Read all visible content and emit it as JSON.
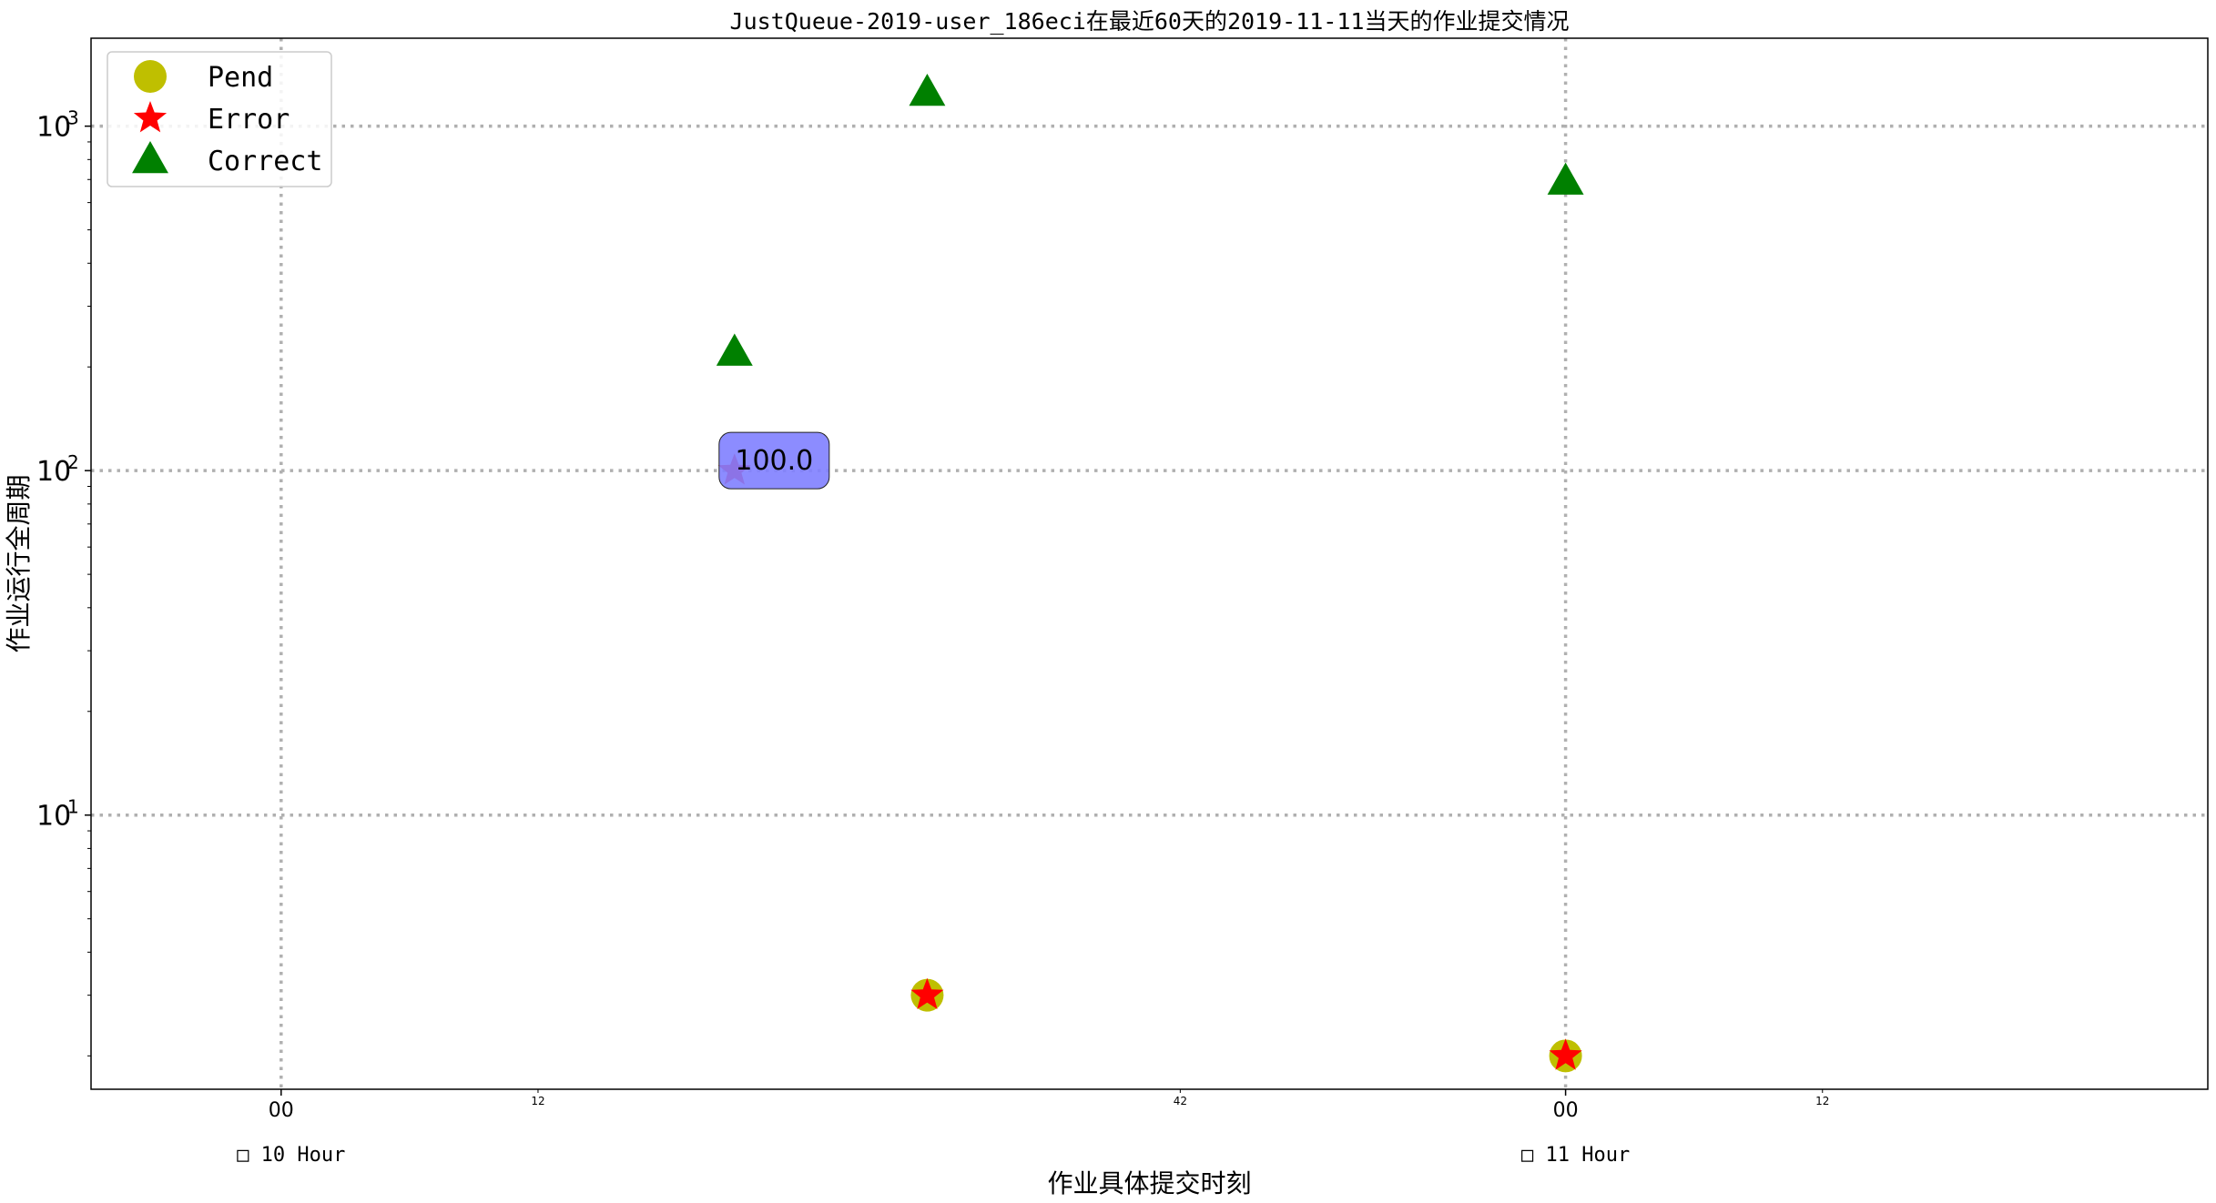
{
  "chart_data": {
    "type": "scatter",
    "title": "JustQueue-2019-user_186eci在最近60天的2019-11-11当天的作业提交情况",
    "xlabel": "作业具体提交时刻",
    "ylabel": "作业运行全周期",
    "yscale": "log",
    "ylim": [
      1.6,
      1800
    ],
    "xlim": [
      -0.148,
      1.5
    ],
    "grid": true,
    "legend_position": "top-left",
    "yticks": [
      {
        "value": 10,
        "base": "10",
        "exp": "1"
      },
      {
        "value": 100,
        "base": "10",
        "exp": "2"
      },
      {
        "value": 1000,
        "base": "10",
        "exp": "3"
      }
    ],
    "xticks_major": [
      {
        "x": 0,
        "label": "00"
      },
      {
        "x": 1,
        "label": "00"
      }
    ],
    "xticks_minor": [
      {
        "x": 0.2,
        "label": "12"
      },
      {
        "x": 0.7,
        "label": "42"
      },
      {
        "x": 1.2,
        "label": "12"
      }
    ],
    "day_labels": [
      {
        "x": 0,
        "label": "□ 10 Hour"
      },
      {
        "x": 1,
        "label": "□ 11 Hour"
      }
    ],
    "series": [
      {
        "name": "Pend",
        "marker": "circle",
        "color": "#bfbf00",
        "points": [
          {
            "x": 0.503,
            "y": 3
          },
          {
            "x": 1.0,
            "y": 2
          }
        ]
      },
      {
        "name": "Error",
        "marker": "star",
        "color": "#ff0000",
        "points": [
          {
            "x": 0.353,
            "y": 100
          },
          {
            "x": 0.503,
            "y": 3
          },
          {
            "x": 1.0,
            "y": 2
          }
        ]
      },
      {
        "name": "Correct",
        "marker": "triangle",
        "color": "#008000",
        "points": [
          {
            "x": 0.353,
            "y": 220
          },
          {
            "x": 0.503,
            "y": 1250
          },
          {
            "x": 1.0,
            "y": 690
          }
        ]
      }
    ],
    "annotations": [
      {
        "x": 0.353,
        "y": 100,
        "text": "100.0",
        "box_color": "#7f7fff"
      }
    ]
  }
}
